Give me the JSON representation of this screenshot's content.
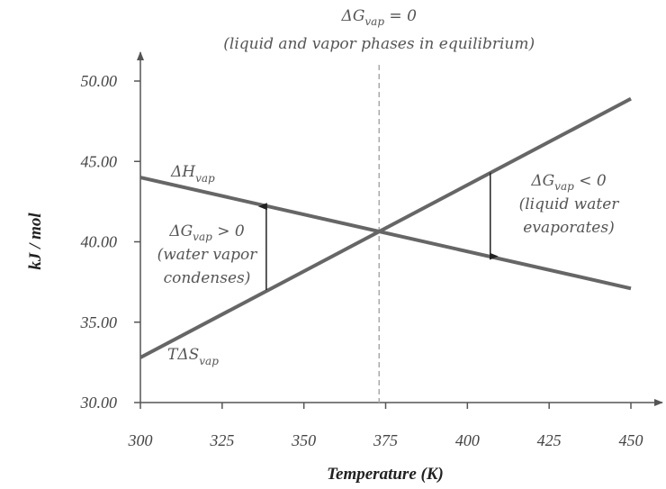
{
  "chart_data": {
    "type": "line",
    "title": "",
    "xlabel": "Temperature (K)",
    "ylabel": "kJ / mol",
    "xlim": [
      300,
      450
    ],
    "ylim": [
      30,
      50
    ],
    "x_ticks": [
      "300",
      "325",
      "350",
      "375",
      "400",
      "425",
      "450"
    ],
    "y_ticks": [
      "30.00",
      "35.00",
      "40.00",
      "45.00",
      "50.00"
    ],
    "grid": false,
    "line_color": "#666666",
    "series": [
      {
        "name": "ΔH",
        "sub": "vap",
        "points": [
          [
            300,
            44.0
          ],
          [
            450,
            37.1
          ]
        ]
      },
      {
        "name": "TΔS",
        "sub": "vap",
        "points": [
          [
            300,
            32.8
          ],
          [
            450,
            48.9
          ]
        ]
      }
    ],
    "equilibrium_line": {
      "x": 373,
      "style": "dashed",
      "label_main": "ΔG",
      "label_sub": "vap",
      "label_rest": " = 0",
      "label_line2": "(liquid and vapor phases in equilibrium)"
    },
    "annotations": [
      {
        "x": 338.5,
        "from": 37.0,
        "to": 42.2,
        "lines": [
          "ΔG|vap| > 0",
          "(water vapor",
          "condenses)"
        ]
      },
      {
        "x": 407,
        "from": 44.3,
        "to": 39.1,
        "lines": [
          "ΔG|vap| < 0",
          "(liquid water",
          "evaporates)"
        ]
      }
    ]
  }
}
